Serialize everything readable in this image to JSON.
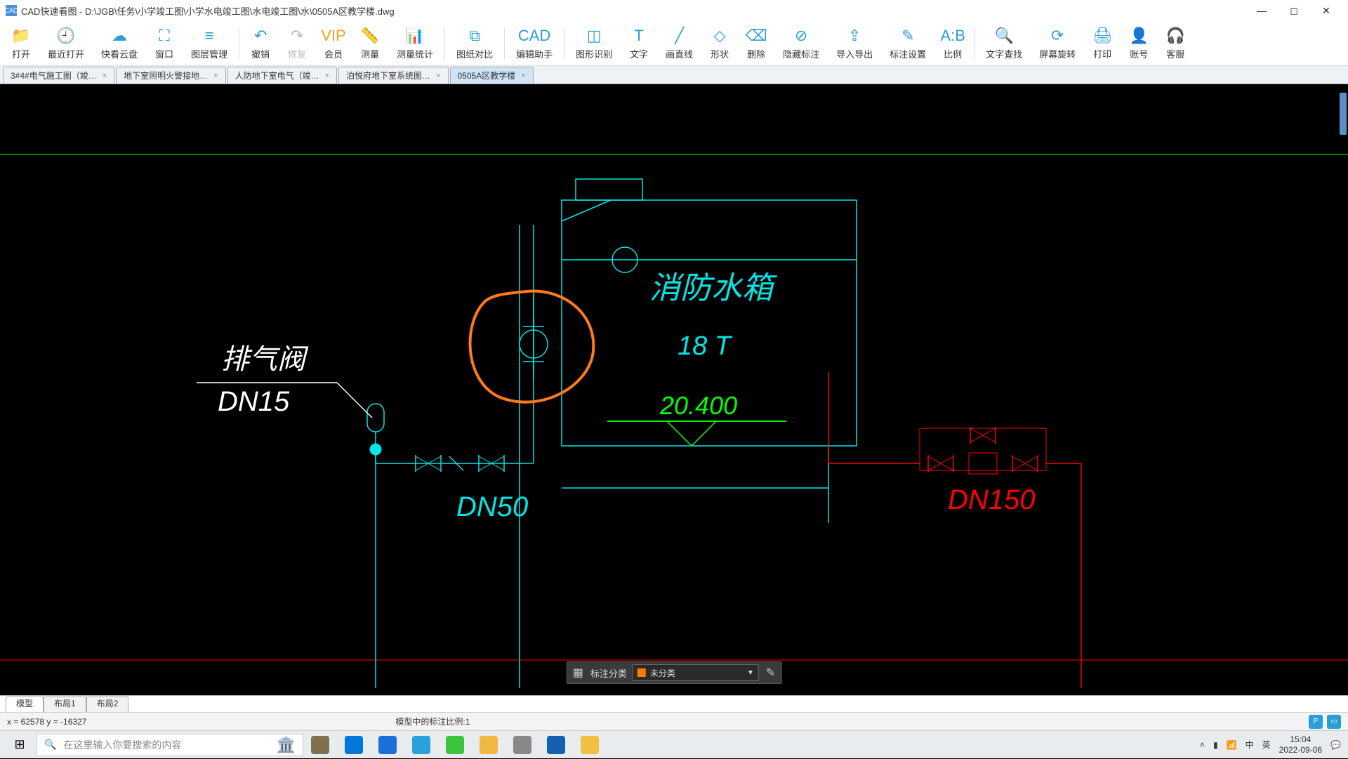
{
  "window": {
    "title": "CAD快速看图 - D:\\JGB\\任务\\小学竣工图\\小学水电竣工图\\水电竣工图\\水\\0505A区教学楼.dwg",
    "icon_text": "CAD"
  },
  "toolbar": [
    {
      "label": "打开",
      "icon": "📁",
      "name": "open"
    },
    {
      "label": "最近打开",
      "icon": "🕘",
      "name": "recent"
    },
    {
      "label": "快看云盘",
      "icon": "☁",
      "name": "cloud"
    },
    {
      "label": "窗口",
      "icon": "⛶",
      "name": "window"
    },
    {
      "label": "图层管理",
      "icon": "≡",
      "name": "layers"
    },
    {
      "sep": true
    },
    {
      "label": "撤销",
      "icon": "↶",
      "name": "undo"
    },
    {
      "label": "恢复",
      "icon": "↷",
      "name": "redo",
      "gray": true
    },
    {
      "label": "会员",
      "icon": "VIP",
      "name": "vip",
      "vip": true
    },
    {
      "label": "测量",
      "icon": "📏",
      "name": "measure"
    },
    {
      "label": "测量统计",
      "icon": "📊",
      "name": "measure-stats"
    },
    {
      "sep": true
    },
    {
      "label": "图纸对比",
      "icon": "⧉",
      "name": "compare"
    },
    {
      "sep": true
    },
    {
      "label": "编辑助手",
      "icon": "CAD",
      "name": "edit-assist"
    },
    {
      "sep": true
    },
    {
      "label": "图形识别",
      "icon": "◫",
      "name": "recognize"
    },
    {
      "label": "文字",
      "icon": "T",
      "name": "text"
    },
    {
      "label": "画直线",
      "icon": "╱",
      "name": "line"
    },
    {
      "label": "形状",
      "icon": "◇",
      "name": "shape"
    },
    {
      "label": "删除",
      "icon": "⌫",
      "name": "delete"
    },
    {
      "label": "隐藏标注",
      "icon": "⊘",
      "name": "hide-anno"
    },
    {
      "label": "导入导出",
      "icon": "⇪",
      "name": "import-export"
    },
    {
      "label": "标注设置",
      "icon": "✎",
      "name": "anno-settings"
    },
    {
      "label": "比例",
      "icon": "A:B",
      "name": "scale"
    },
    {
      "sep": true
    },
    {
      "label": "文字查找",
      "icon": "🔍",
      "name": "find-text"
    },
    {
      "label": "屏幕旋转",
      "icon": "⟳",
      "name": "rotate"
    },
    {
      "label": "打印",
      "icon": "🖨",
      "name": "print"
    },
    {
      "label": "账号",
      "icon": "👤",
      "name": "account"
    },
    {
      "label": "客服",
      "icon": "🎧",
      "name": "support"
    }
  ],
  "tabs": [
    {
      "label": "3#4#电气施工图（竣…",
      "active": false
    },
    {
      "label": "地下室照明火警接地…",
      "active": false
    },
    {
      "label": "人防地下室电气（竣…",
      "active": false
    },
    {
      "label": "泊悦府地下室系统图…",
      "active": false
    },
    {
      "label": "0505A区教学楼",
      "active": true
    }
  ],
  "drawing": {
    "colors": {
      "cyan": "#00e5e5",
      "green": "#00ff00",
      "red": "#ff0000",
      "white": "#ffffff",
      "orange": "#ff7b1a",
      "bg": "#000000"
    },
    "labels": {
      "exhaust_valve": "排气阀",
      "dn15": "DN15",
      "dn50": "DN50",
      "dn150": "DN150",
      "tank_title": "消防水箱",
      "tank_capacity": "18 T",
      "elevation": "20.400"
    },
    "font": {
      "family": "KaiTi, STKaiti, serif",
      "label_size": 36,
      "small_size": 30
    }
  },
  "anno_panel": {
    "label": "标注分类",
    "value": "未分类",
    "swatch": "#ff7b00"
  },
  "bottom_tabs": [
    "模型",
    "布局1",
    "布局2"
  ],
  "status": {
    "coords": "x = 62578  y = -16327",
    "scale": "模型中的标注比例:1"
  },
  "taskbar": {
    "search_placeholder": "在这里输入你要搜索的内容",
    "apps": [
      {
        "color": "#807050"
      },
      {
        "color": "#0078d7"
      },
      {
        "color": "#1b6fd8"
      },
      {
        "color": "#2aa1da"
      },
      {
        "color": "#3cc43c"
      },
      {
        "color": "#f0b840"
      },
      {
        "color": "#888888"
      },
      {
        "color": "#1560b0"
      },
      {
        "color": "#f0c040"
      }
    ],
    "tray": {
      "ime1": "中",
      "ime2": "英",
      "time": "15:04",
      "date": "2022-09-06"
    }
  }
}
